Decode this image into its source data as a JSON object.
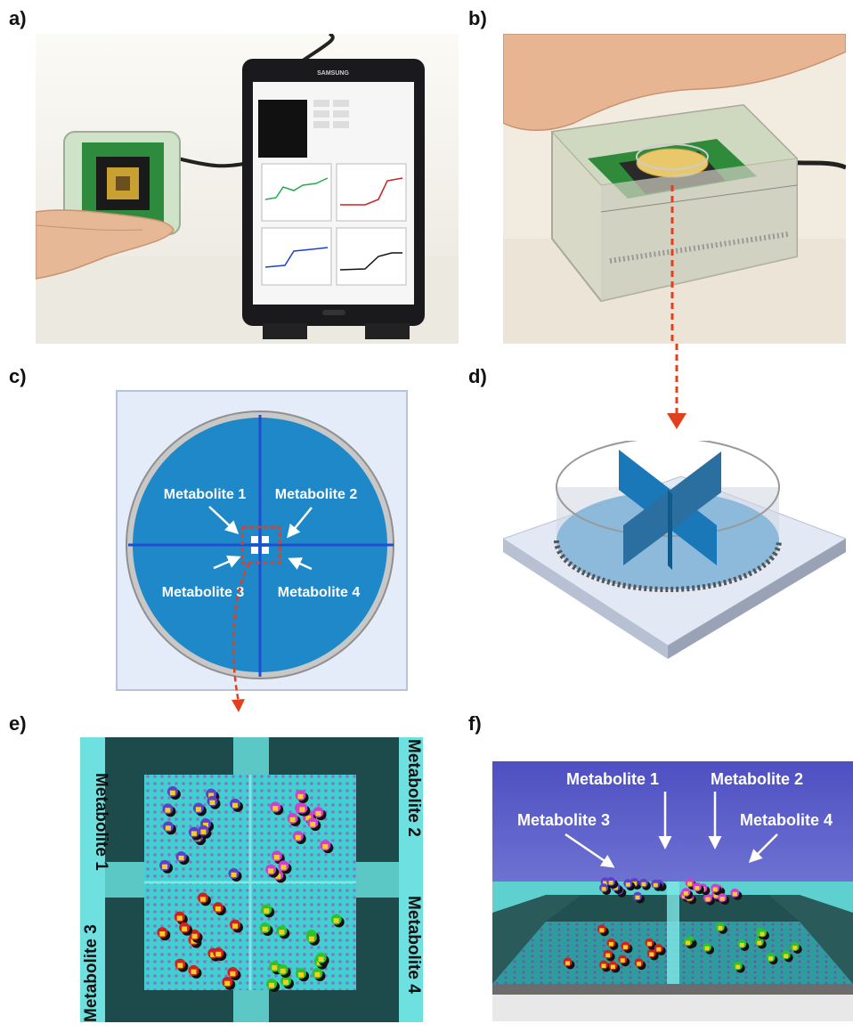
{
  "panels": {
    "a": {
      "label": "a)",
      "tablet_brand": "SAMSUNG"
    },
    "b": {
      "label": "b)"
    },
    "c": {
      "label": "c)",
      "m1": "Metabolite 1",
      "m2": "Metabolite 2",
      "m3": "Metabolite 3",
      "m4": "Metabolite 4"
    },
    "d": {
      "label": "d)"
    },
    "e": {
      "label": "e)",
      "m1": "Metabolite 1",
      "m2": "Metabolite 2",
      "m3": "Metabolite 3",
      "m4": "Metabolite 4"
    },
    "f": {
      "label": "f)",
      "m1": "Metabolite 1",
      "m2": "Metabolite 2",
      "m3": "Metabolite 3",
      "m4": "Metabolite 4"
    }
  },
  "colors": {
    "accent_arrow": "#e0401e",
    "well_blue": "#1e88c9",
    "divider_blue": "#1f4fd1",
    "chip_teal": "#3fd0cf",
    "dark_frame": "#1d4a4a",
    "sky_purple": "#6b6fd6",
    "m1_particle": "#6040c8",
    "m2_particle": "#d040d0",
    "m3_particle": "#d02020",
    "m4_particle": "#30c030"
  },
  "icons": [
    "hand-icon",
    "tablet-icon",
    "cable-icon",
    "sensor-box-icon"
  ]
}
